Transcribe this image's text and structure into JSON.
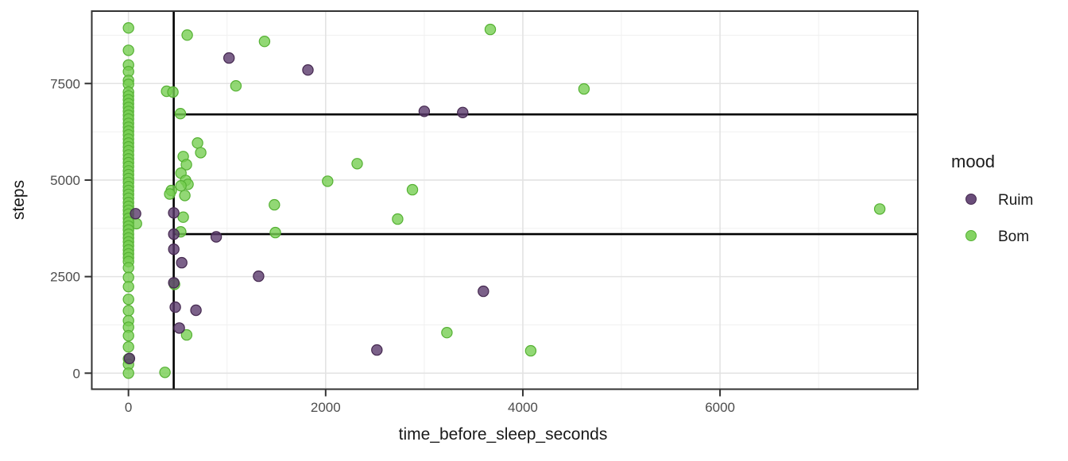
{
  "chart_data": {
    "type": "scatter",
    "title": "",
    "xlabel": "time_before_sleep_seconds",
    "ylabel": "steps",
    "legend": {
      "title": "mood",
      "items": [
        {
          "label": "Ruim"
        },
        {
          "label": "Bom"
        }
      ]
    },
    "x_axis": {
      "range": [
        -372,
        8006
      ],
      "ticks": [
        0,
        2000,
        4000,
        6000
      ],
      "tick_labels": [
        "0",
        "2000",
        "4000",
        "6000"
      ],
      "minor": [
        1000,
        3000,
        5000,
        7000
      ]
    },
    "y_axis": {
      "range": [
        -415,
        9375
      ],
      "ticks": [
        0,
        2500,
        5000,
        7500
      ],
      "tick_labels": [
        "0",
        "2500",
        "5000",
        "7500"
      ],
      "minor": [
        1250,
        3750,
        6250,
        8750
      ]
    },
    "reference_lines": [
      {
        "type": "vline",
        "x": 459
      },
      {
        "type": "hline",
        "y": 6700,
        "x_start": 459
      },
      {
        "type": "hline",
        "y": 3600,
        "x_start": 459
      }
    ],
    "series": [
      {
        "name": "Ruim",
        "color": "#5a3a6b",
        "stroke": "#44284f",
        "points": [
          [
            1020,
            8160
          ],
          [
            1820,
            7850
          ],
          [
            3000,
            6780
          ],
          [
            3390,
            6750
          ],
          [
            459,
            4150
          ],
          [
            72,
            4130
          ],
          [
            460,
            3600
          ],
          [
            890,
            3530
          ],
          [
            460,
            3210
          ],
          [
            540,
            2860
          ],
          [
            1320,
            2510
          ],
          [
            460,
            2340
          ],
          [
            3600,
            2120
          ],
          [
            475,
            1710
          ],
          [
            685,
            1630
          ],
          [
            515,
            1170
          ],
          [
            2520,
            600
          ],
          [
            10,
            380
          ]
        ]
      },
      {
        "name": "Bom",
        "color": "#77ce52",
        "stroke": "#55b133",
        "points": [
          [
            3670,
            8900
          ],
          [
            596,
            8755
          ],
          [
            1380,
            8590
          ],
          [
            1090,
            7440
          ],
          [
            4620,
            7360
          ],
          [
            387,
            7300
          ],
          [
            451,
            7280
          ],
          [
            527,
            6720
          ],
          [
            701,
            5960
          ],
          [
            733,
            5710
          ],
          [
            556,
            5610
          ],
          [
            2320,
            5425
          ],
          [
            588,
            5400
          ],
          [
            532,
            5180
          ],
          [
            580,
            4990
          ],
          [
            2020,
            4970
          ],
          [
            604,
            4890
          ],
          [
            532,
            4850
          ],
          [
            2880,
            4750
          ],
          [
            435,
            4730
          ],
          [
            419,
            4640
          ],
          [
            572,
            4600
          ],
          [
            1480,
            4360
          ],
          [
            7620,
            4250
          ],
          [
            556,
            4040
          ],
          [
            2730,
            3990
          ],
          [
            81,
            3870
          ],
          [
            1490,
            3640
          ],
          [
            530,
            3660
          ],
          [
            467,
            2300
          ],
          [
            3230,
            1050
          ],
          [
            590,
            990
          ],
          [
            4080,
            580
          ],
          [
            370,
            20
          ]
        ],
        "zero_cluster_y": [
          8940,
          8360,
          7980,
          7810,
          7580,
          7480,
          7280,
          7180,
          7080,
          6980,
          6880,
          6780,
          6680,
          6580,
          6470,
          6370,
          6270,
          6170,
          6060,
          5960,
          5860,
          5760,
          5650,
          5550,
          5450,
          5350,
          5240,
          5140,
          5040,
          4940,
          4830,
          4730,
          4630,
          4530,
          4420,
          4320,
          4220,
          4120,
          4010,
          3910,
          3810,
          3710,
          3600,
          3500,
          3400,
          3300,
          3190,
          3090,
          2990,
          2890,
          2730,
          2480,
          2240,
          1910,
          1620,
          1360,
          1190,
          970,
          680,
          370,
          225,
          0
        ]
      }
    ],
    "style": {
      "background": "#ffffff",
      "grid_major": "#e3e3e3",
      "grid_minor": "#f0f0f0",
      "panel_border": "#333333",
      "tick_color": "#333333",
      "ref_line_color": "#000000",
      "point_radius": 6.6,
      "point_opacity": 0.8
    }
  }
}
